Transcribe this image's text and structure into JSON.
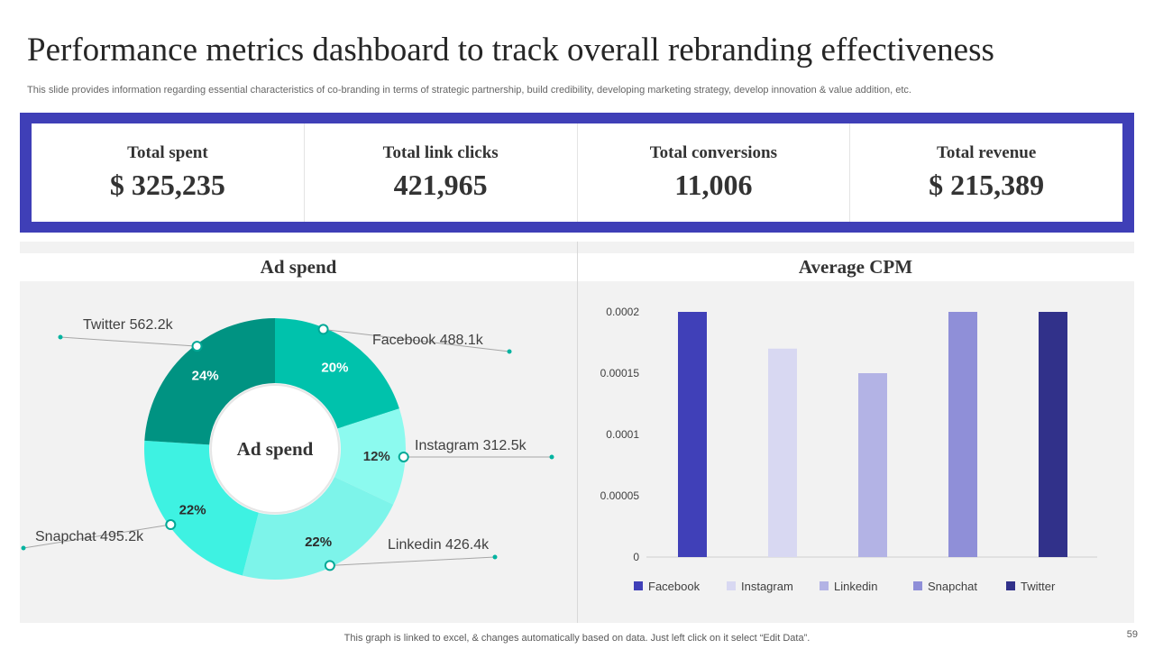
{
  "title": "Performance metrics dashboard to track overall rebranding effectiveness",
  "subtitle": "This slide provides information regarding essential characteristics of co-branding in terms of strategic partnership, build credibility, developing marketing strategy, develop innovation & value addition, etc.",
  "kpis": [
    {
      "label": "Total spent",
      "value": "$ 325,235"
    },
    {
      "label": "Total link clicks",
      "value": "421,965"
    },
    {
      "label": "Total conversions",
      "value": "11,006"
    },
    {
      "label": "Total revenue",
      "value": "$ 215,389"
    }
  ],
  "footer": "This graph is linked to excel, & changes automatically based on data. Just left click on it select “Edit Data”.",
  "page_number": "59",
  "colors": {
    "frame": "#3f3fb7",
    "panel_bg": "#f2f2f2"
  },
  "chart_data": [
    {
      "type": "pie",
      "variant": "donut",
      "title": "Ad spend",
      "center_label": "Ad spend",
      "slices": [
        {
          "name": "Facebook",
          "value_label": "488.1k",
          "percent_label": "20%",
          "percent": 20,
          "color": "#00c2ac"
        },
        {
          "name": "Instagram",
          "value_label": "312.5k",
          "percent_label": "12%",
          "percent": 12,
          "color": "#8cfaef"
        },
        {
          "name": "Linkedin",
          "value_label": "426.4k",
          "percent_label": "22%",
          "percent": 22,
          "color": "#7df4ea"
        },
        {
          "name": "Snapchat",
          "value_label": "495.2k",
          "percent_label": "22%",
          "percent": 22,
          "color": "#3ef2e2"
        },
        {
          "name": "Twitter",
          "value_label": "562.2k",
          "percent_label": "24%",
          "percent": 24,
          "color": "#009382"
        }
      ]
    },
    {
      "type": "bar",
      "title": "Average CPM",
      "categories": [
        "Facebook",
        "Instagram",
        "Linkedin",
        "Snapchat",
        "Twitter"
      ],
      "values": [
        0.0002,
        0.00017,
        0.00015,
        0.0002,
        0.0002
      ],
      "colors": [
        "#4040b8",
        "#d8d8f2",
        "#b3b3e5",
        "#8f8fd8",
        "#31318a"
      ],
      "ylim": [
        0,
        0.0002
      ],
      "yticks": [
        {
          "value": 0,
          "label": "0"
        },
        {
          "value": 5e-05,
          "label": "0.00005"
        },
        {
          "value": 0.0001,
          "label": "0.0001"
        },
        {
          "value": 0.00015,
          "label": "0.00015"
        },
        {
          "value": 0.0002,
          "label": "0.0002"
        }
      ],
      "legend": "bottom"
    }
  ]
}
